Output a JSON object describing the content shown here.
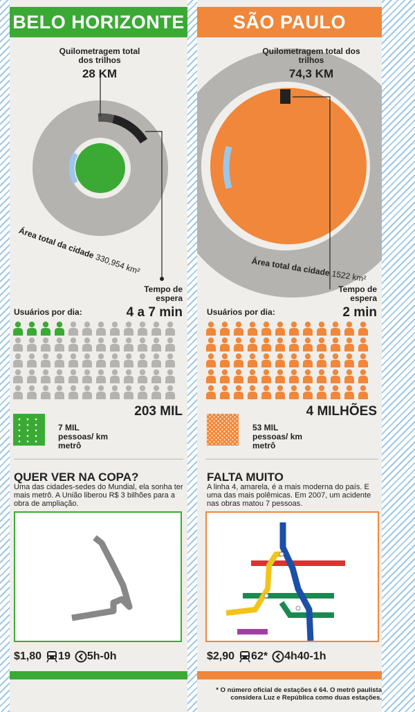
{
  "left": {
    "city": "BELO HORIZONTE",
    "rail_label": "Quilometragem total dos trilhos",
    "rail_value": "28 KM",
    "area_label": "Área total da cidade",
    "area_value": "330,954 km²",
    "wait_label": "Tempo de espera",
    "wait_value": "4 a 7 min",
    "users_label": "Usuários por dia:",
    "users_value": "203 MIL",
    "density_value": "7 MIL",
    "density_unit": "pessoas/ km metrô",
    "section_title": "QUER VER NA COPA?",
    "section_text": "Uma das cidades-sedes do Mundial, ela sonha ter mais metrô. A União liberou R$ 3 bilhões para a obra de ampliação.",
    "fare": "$1,80",
    "stations": "19",
    "hours": "5h-0h",
    "highlighted_people": 4,
    "total_people": 60,
    "color": "#3aaa35"
  },
  "right": {
    "city": "SÃO PAULO",
    "rail_label": "Quilometragem total dos trilhos",
    "rail_value": "74,3 KM",
    "area_label": "Área total da cidade",
    "area_value": "1522 km²",
    "wait_label": "Tempo de espera",
    "wait_value": "2 min",
    "users_label": "Usuários por dia:",
    "users_value": "4 MILHÕES",
    "density_value": "53 MIL",
    "density_unit": "pessoas/ km metrô",
    "section_title": "FALTA MUITO",
    "section_text": "A linha 4, amarela, é a mais moderna do país. E uma das mais polêmicas. Em 2007, um acidente nas obras matou 7 pessoas.",
    "fare": "$2,90",
    "stations": "62*",
    "hours": "4h40-1h",
    "highlighted_people": 60,
    "total_people": 60,
    "color": "#f0873a"
  },
  "footnote": "* O número oficial de estações é 64. O metrô paulista considera Luz e República como duas estações.",
  "colors": {
    "gray": "#b4b3af",
    "dark": "#222222",
    "metro_blue": "#9cc7ea"
  }
}
